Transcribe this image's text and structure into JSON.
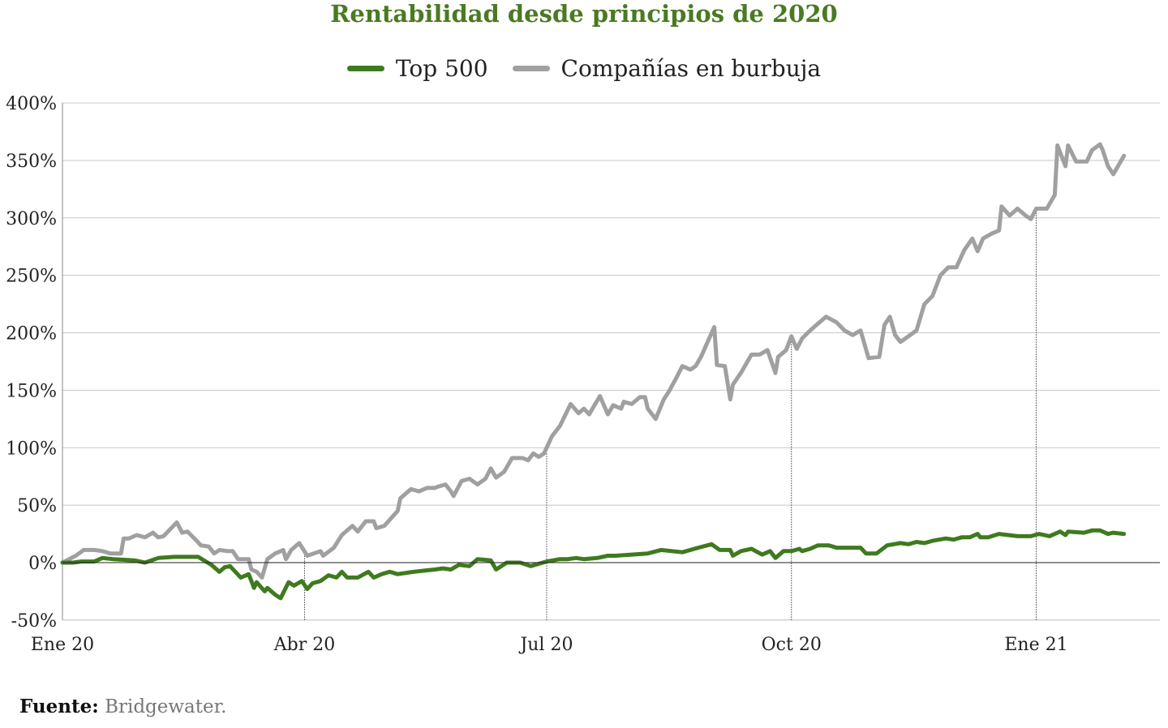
{
  "chart_data": {
    "type": "line",
    "title": "Rentabilidad desde principios de 2020",
    "xlabel": "",
    "ylabel": "",
    "ylim": [
      -50,
      400
    ],
    "y_ticks": [
      -50,
      0,
      50,
      100,
      150,
      200,
      250,
      300,
      350,
      400
    ],
    "y_tick_labels": [
      "-50%",
      "0%",
      "50%",
      "100%",
      "150%",
      "200%",
      "250%",
      "300%",
      "350%",
      "400%"
    ],
    "x_ticks": [
      0,
      91,
      182,
      274,
      366
    ],
    "x_tick_labels": [
      "Ene 20",
      "Abr 20",
      "Jul 20",
      "Oct 20",
      "Ene 21"
    ],
    "xlim": [
      0,
      412
    ],
    "grid": true,
    "legend_position": "top-center",
    "series": [
      {
        "name": "Top 500",
        "color": "#3f7a1e",
        "points": [
          [
            0,
            0
          ],
          [
            4,
            0
          ],
          [
            7,
            1
          ],
          [
            12,
            1
          ],
          [
            15,
            4
          ],
          [
            19,
            3
          ],
          [
            27,
            2
          ],
          [
            31,
            0
          ],
          [
            36,
            4
          ],
          [
            42,
            5
          ],
          [
            51,
            5
          ],
          [
            56,
            -2
          ],
          [
            59,
            -8
          ],
          [
            61,
            -4
          ],
          [
            63,
            -3
          ],
          [
            67,
            -13
          ],
          [
            70,
            -10
          ],
          [
            72,
            -22
          ],
          [
            73,
            -17
          ],
          [
            76,
            -25
          ],
          [
            77,
            -22
          ],
          [
            80,
            -28
          ],
          [
            82,
            -31
          ],
          [
            85,
            -17
          ],
          [
            87,
            -20
          ],
          [
            90,
            -16
          ],
          [
            92,
            -23
          ],
          [
            94,
            -18
          ],
          [
            97,
            -16
          ],
          [
            100,
            -11
          ],
          [
            103,
            -13
          ],
          [
            105,
            -8
          ],
          [
            107,
            -13
          ],
          [
            111,
            -13
          ],
          [
            115,
            -8
          ],
          [
            117,
            -13
          ],
          [
            120,
            -10
          ],
          [
            123,
            -8
          ],
          [
            126,
            -10
          ],
          [
            132,
            -8
          ],
          [
            136,
            -7
          ],
          [
            140,
            -6
          ],
          [
            143,
            -5
          ],
          [
            146,
            -6
          ],
          [
            149,
            -2
          ],
          [
            153,
            -3
          ],
          [
            156,
            3
          ],
          [
            161,
            2
          ],
          [
            163,
            -6
          ],
          [
            167,
            0
          ],
          [
            172,
            0
          ],
          [
            176,
            -3
          ],
          [
            182,
            1
          ],
          [
            187,
            3
          ],
          [
            190,
            3
          ],
          [
            193,
            4
          ],
          [
            196,
            3
          ],
          [
            201,
            4
          ],
          [
            205,
            6
          ],
          [
            208,
            6
          ],
          [
            214,
            7
          ],
          [
            220,
            8
          ],
          [
            225,
            11
          ],
          [
            233,
            9
          ],
          [
            239,
            13
          ],
          [
            244,
            16
          ],
          [
            247,
            11
          ],
          [
            251,
            11
          ],
          [
            252,
            6
          ],
          [
            255,
            10
          ],
          [
            259,
            12
          ],
          [
            263,
            7
          ],
          [
            266,
            10
          ],
          [
            268,
            4
          ],
          [
            271,
            10
          ],
          [
            274,
            10
          ],
          [
            277,
            12
          ],
          [
            278,
            10
          ],
          [
            281,
            12
          ],
          [
            284,
            15
          ],
          [
            288,
            15
          ],
          [
            291,
            13
          ],
          [
            294,
            13
          ],
          [
            300,
            13
          ],
          [
            302,
            8
          ],
          [
            306,
            8
          ],
          [
            310,
            15
          ],
          [
            315,
            17
          ],
          [
            318,
            16
          ],
          [
            321,
            18
          ],
          [
            324,
            17
          ],
          [
            327,
            19
          ],
          [
            332,
            21
          ],
          [
            335,
            20
          ],
          [
            338,
            22
          ],
          [
            341,
            22
          ],
          [
            344,
            25
          ],
          [
            345,
            22
          ],
          [
            348,
            22
          ],
          [
            352,
            25
          ],
          [
            359,
            23
          ],
          [
            364,
            23
          ],
          [
            367,
            25
          ],
          [
            371,
            23
          ],
          [
            375,
            27
          ],
          [
            377,
            24
          ],
          [
            378,
            27
          ],
          [
            384,
            26
          ],
          [
            387,
            28
          ],
          [
            390,
            28
          ],
          [
            393,
            25
          ],
          [
            395,
            26
          ],
          [
            399,
            25
          ]
        ]
      },
      {
        "name": "Compañías en burbuja",
        "color": "#a0a0a0",
        "points": [
          [
            0,
            0
          ],
          [
            5,
            6
          ],
          [
            8,
            11
          ],
          [
            12,
            11
          ],
          [
            15,
            10
          ],
          [
            18,
            8
          ],
          [
            22,
            8
          ],
          [
            23,
            21
          ],
          [
            25,
            21
          ],
          [
            28,
            24
          ],
          [
            31,
            22
          ],
          [
            34,
            26
          ],
          [
            36,
            22
          ],
          [
            38,
            23
          ],
          [
            43,
            35
          ],
          [
            45,
            26
          ],
          [
            47,
            27
          ],
          [
            50,
            20
          ],
          [
            52,
            15
          ],
          [
            55,
            14
          ],
          [
            57,
            8
          ],
          [
            59,
            11
          ],
          [
            62,
            10
          ],
          [
            64,
            10
          ],
          [
            66,
            3
          ],
          [
            70,
            3
          ],
          [
            71,
            -6
          ],
          [
            73,
            -8
          ],
          [
            75,
            -13
          ],
          [
            77,
            3
          ],
          [
            80,
            8
          ],
          [
            83,
            11
          ],
          [
            84,
            3
          ],
          [
            86,
            11
          ],
          [
            89,
            17
          ],
          [
            92,
            6
          ],
          [
            97,
            10
          ],
          [
            98,
            6
          ],
          [
            102,
            13
          ],
          [
            105,
            24
          ],
          [
            109,
            32
          ],
          [
            111,
            27
          ],
          [
            114,
            36
          ],
          [
            117,
            36
          ],
          [
            118,
            30
          ],
          [
            121,
            32
          ],
          [
            126,
            45
          ],
          [
            127,
            56
          ],
          [
            131,
            64
          ],
          [
            134,
            62
          ],
          [
            137,
            65
          ],
          [
            140,
            65
          ],
          [
            141,
            66
          ],
          [
            144,
            68
          ],
          [
            146,
            62
          ],
          [
            147,
            58
          ],
          [
            150,
            71
          ],
          [
            153,
            73
          ],
          [
            156,
            68
          ],
          [
            159,
            73
          ],
          [
            161,
            82
          ],
          [
            163,
            74
          ],
          [
            166,
            79
          ],
          [
            169,
            91
          ],
          [
            173,
            91
          ],
          [
            175,
            89
          ],
          [
            177,
            95
          ],
          [
            179,
            92
          ],
          [
            181,
            95
          ],
          [
            184,
            110
          ],
          [
            187,
            119
          ],
          [
            191,
            138
          ],
          [
            194,
            130
          ],
          [
            196,
            134
          ],
          [
            198,
            129
          ],
          [
            202,
            145
          ],
          [
            205,
            129
          ],
          [
            207,
            137
          ],
          [
            210,
            134
          ],
          [
            211,
            140
          ],
          [
            214,
            138
          ],
          [
            217,
            144
          ],
          [
            219,
            144
          ],
          [
            220,
            134
          ],
          [
            223,
            125
          ],
          [
            226,
            142
          ],
          [
            228,
            149
          ],
          [
            231,
            162
          ],
          [
            233,
            171
          ],
          [
            236,
            168
          ],
          [
            238,
            171
          ],
          [
            240,
            179
          ],
          [
            245,
            205
          ],
          [
            246,
            172
          ],
          [
            249,
            171
          ],
          [
            251,
            142
          ],
          [
            252,
            155
          ],
          [
            255,
            165
          ],
          [
            259,
            181
          ],
          [
            262,
            181
          ],
          [
            265,
            185
          ],
          [
            268,
            165
          ],
          [
            269,
            179
          ],
          [
            272,
            185
          ],
          [
            274,
            197
          ],
          [
            276,
            186
          ],
          [
            278,
            195
          ],
          [
            281,
            202
          ],
          [
            283,
            206
          ],
          [
            287,
            214
          ],
          [
            291,
            209
          ],
          [
            294,
            202
          ],
          [
            297,
            198
          ],
          [
            300,
            202
          ],
          [
            303,
            178
          ],
          [
            307,
            179
          ],
          [
            309,
            207
          ],
          [
            311,
            214
          ],
          [
            313,
            198
          ],
          [
            315,
            192
          ],
          [
            318,
            197
          ],
          [
            321,
            202
          ],
          [
            324,
            225
          ],
          [
            327,
            232
          ],
          [
            330,
            250
          ],
          [
            333,
            257
          ],
          [
            336,
            257
          ],
          [
            339,
            272
          ],
          [
            342,
            282
          ],
          [
            344,
            271
          ],
          [
            346,
            282
          ],
          [
            349,
            286
          ],
          [
            352,
            289
          ],
          [
            353,
            310
          ],
          [
            356,
            302
          ],
          [
            359,
            308
          ],
          [
            362,
            302
          ],
          [
            364,
            299
          ],
          [
            366,
            308
          ],
          [
            370,
            308
          ],
          [
            373,
            320
          ],
          [
            374,
            363
          ],
          [
            377,
            345
          ],
          [
            378,
            363
          ],
          [
            381,
            349
          ],
          [
            385,
            349
          ],
          [
            387,
            359
          ],
          [
            390,
            364
          ],
          [
            391,
            359
          ],
          [
            393,
            345
          ],
          [
            395,
            338
          ],
          [
            399,
            354
          ]
        ]
      }
    ]
  },
  "legend": {
    "top500": "Top 500",
    "burbuja": "Compañías en burbuja"
  },
  "source": {
    "label": "Fuente:",
    "text": "Bridgewater."
  }
}
